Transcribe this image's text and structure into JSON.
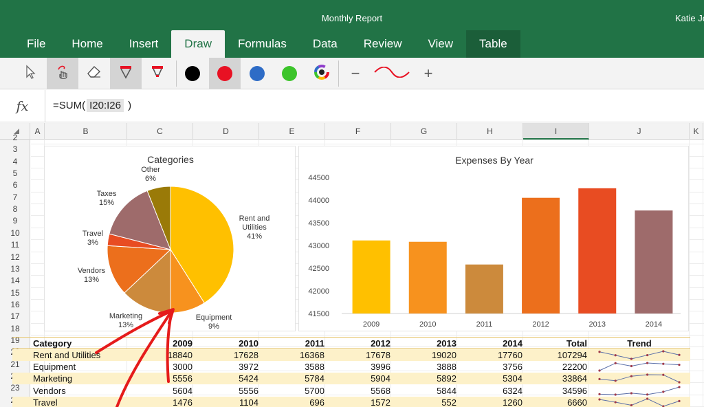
{
  "app": {
    "title": "Monthly Report",
    "user": "Katie Jo"
  },
  "tabs": [
    {
      "label": "File"
    },
    {
      "label": "Home"
    },
    {
      "label": "Insert"
    },
    {
      "label": "Draw"
    },
    {
      "label": "Formulas"
    },
    {
      "label": "Data"
    },
    {
      "label": "Review"
    },
    {
      "label": "View"
    },
    {
      "label": "Table"
    }
  ],
  "active_tab": "Draw",
  "toolbar": {
    "pen_colors": [
      "#000000",
      "#e81123",
      "#2e6cc6",
      "#3cc42b"
    ],
    "selected_pen": "#e81123",
    "stroke_color": "#e81123",
    "zoom_out": "−",
    "zoom_in": "+"
  },
  "formula_bar": {
    "fx": "fx",
    "prefix": "=SUM(",
    "ref": "I20:I26",
    "suffix": ")"
  },
  "grid": {
    "columns": [
      "A",
      "B",
      "C",
      "D",
      "E",
      "F",
      "G",
      "H",
      "I",
      "J",
      "K"
    ],
    "active_column": "I",
    "rows": [
      "2",
      "3",
      "4",
      "5",
      "6",
      "7",
      "8",
      "9",
      "10",
      "11",
      "12",
      "13",
      "14",
      "15",
      "16",
      "17",
      "18",
      "19",
      "20",
      "21",
      "22",
      "23",
      "24"
    ]
  },
  "chart_data": [
    {
      "type": "pie",
      "title": "Categories",
      "slices": [
        {
          "name": "Rent and Utilities",
          "label_lines": [
            "Rent and",
            "Utilities"
          ],
          "percent": 41,
          "pct_label": "41%",
          "color": "#ffc000"
        },
        {
          "name": "Equipment",
          "label_lines": [
            "Equipment"
          ],
          "percent": 9,
          "pct_label": "9%",
          "color": "#f7921e"
        },
        {
          "name": "Marketing",
          "label_lines": [
            "Marketing"
          ],
          "percent": 13,
          "pct_label": "13%",
          "color": "#cc8a3c"
        },
        {
          "name": "Vendors",
          "label_lines": [
            "Vendors"
          ],
          "percent": 13,
          "pct_label": "13%",
          "color": "#ec6f1c"
        },
        {
          "name": "Travel",
          "label_lines": [
            "Travel"
          ],
          "percent": 3,
          "pct_label": "3%",
          "color": "#e84c22"
        },
        {
          "name": "Taxes",
          "label_lines": [
            "Taxes"
          ],
          "percent": 15,
          "pct_label": "15%",
          "color": "#9e6b6b"
        },
        {
          "name": "Other",
          "label_lines": [
            "Other"
          ],
          "percent": 6,
          "pct_label": "6%",
          "color": "#9a7a08"
        }
      ]
    },
    {
      "type": "bar",
      "title": "Expenses By Year",
      "categories": [
        "2009",
        "2010",
        "2011",
        "2012",
        "2013",
        "2014"
      ],
      "values": [
        43110,
        43080,
        42580,
        44050,
        44260,
        43770
      ],
      "colors": [
        "#ffc000",
        "#f7921e",
        "#cc8a3c",
        "#ec6f1c",
        "#e84c22",
        "#9e6b6b"
      ],
      "ylim": [
        41500,
        44500
      ],
      "yticks": [
        "41500",
        "42000",
        "42500",
        "43000",
        "43500",
        "44000",
        "44500"
      ],
      "grid": false,
      "legend": "none"
    }
  ],
  "table": {
    "headers": [
      "Category",
      "2009",
      "2010",
      "2011",
      "2012",
      "2013",
      "2014",
      "Total",
      "Trend"
    ],
    "rows": [
      {
        "cells": [
          "Rent and Utilities",
          "18840",
          "17628",
          "16368",
          "17678",
          "19020",
          "17760",
          "107294"
        ],
        "trend": [
          18840,
          17628,
          16368,
          17678,
          19020,
          17760
        ]
      },
      {
        "cells": [
          "Equipment",
          "3000",
          "3972",
          "3588",
          "3996",
          "3888",
          "3756",
          "22200"
        ],
        "trend": [
          3000,
          3972,
          3588,
          3996,
          3888,
          3756
        ]
      },
      {
        "cells": [
          "Marketing",
          "5556",
          "5424",
          "5784",
          "5904",
          "5892",
          "5304",
          "33864"
        ],
        "trend": [
          5556,
          5424,
          5784,
          5904,
          5892,
          5304
        ]
      },
      {
        "cells": [
          "Vendors",
          "5604",
          "5556",
          "5700",
          "5568",
          "5844",
          "6324",
          "34596"
        ],
        "trend": [
          5604,
          5556,
          5700,
          5568,
          5844,
          6324
        ]
      },
      {
        "cells": [
          "Travel",
          "1476",
          "1104",
          "696",
          "1572",
          "552",
          "1260",
          "6660"
        ],
        "trend": [
          1476,
          1104,
          696,
          1572,
          552,
          1260
        ]
      }
    ]
  },
  "ink_color": "#e51b1b"
}
